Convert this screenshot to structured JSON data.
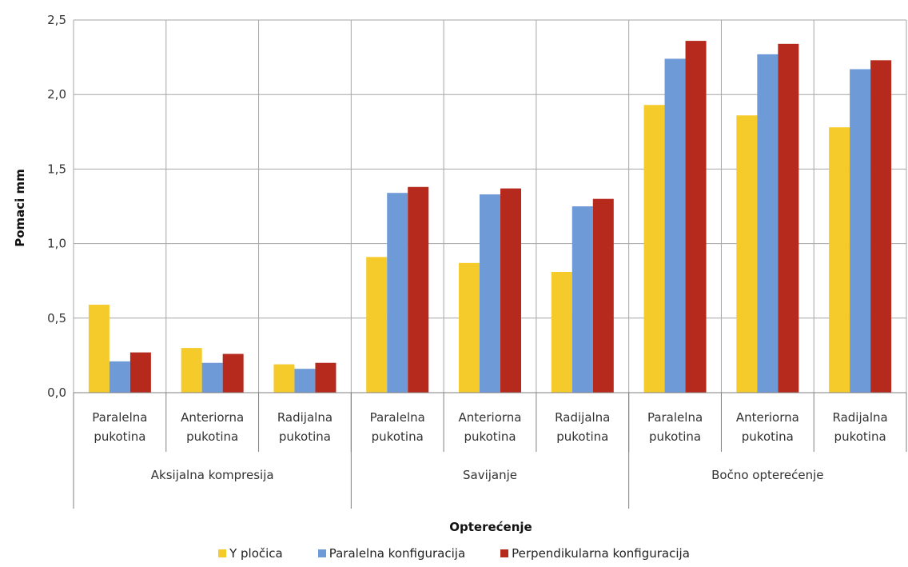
{
  "chart_data": {
    "type": "bar",
    "groups": [
      {
        "label": "Aksijalna kompresija",
        "categories": [
          "Paralelna pukotina",
          "Anteriorna pukotina",
          "Radijalna pukotina"
        ]
      },
      {
        "label": "Savijanje",
        "categories": [
          "Paralelna pukotina",
          "Anteriorna pukotina",
          "Radijalna pukotina"
        ]
      },
      {
        "label": "Bočno opterećenje",
        "categories": [
          "Paralelna pukotina",
          "Anteriorna pukotina",
          "Radijalna pukotina"
        ]
      }
    ],
    "category_lines": [
      [
        "Paralelna",
        "pukotina"
      ],
      [
        "Anteriorna",
        "pukotina"
      ],
      [
        "Radijalna",
        "pukotina"
      ]
    ],
    "series": [
      {
        "name": "Y pločica",
        "color": "#F5CB2C",
        "values": [
          0.59,
          0.3,
          0.19,
          0.91,
          0.87,
          0.81,
          1.93,
          1.86,
          1.78
        ]
      },
      {
        "name": "Paralelna konfiguracija",
        "color": "#6F9AD8",
        "values": [
          0.21,
          0.2,
          0.16,
          1.34,
          1.33,
          1.25,
          2.24,
          2.27,
          2.17
        ]
      },
      {
        "name": "Perpendikularna konfiguracija",
        "color": "#B52A1C",
        "values": [
          0.27,
          0.26,
          0.2,
          1.38,
          1.37,
          1.3,
          2.36,
          2.34,
          2.23
        ]
      }
    ],
    "yticks": [
      "0,0",
      "0,5",
      "1,0",
      "1,5",
      "2,0",
      "2,5"
    ],
    "ylim": [
      0,
      2.5
    ],
    "ylabel": "Pomaci    mm",
    "xlabel": "Opterećenje",
    "grid": true,
    "legend_position": "bottom"
  }
}
